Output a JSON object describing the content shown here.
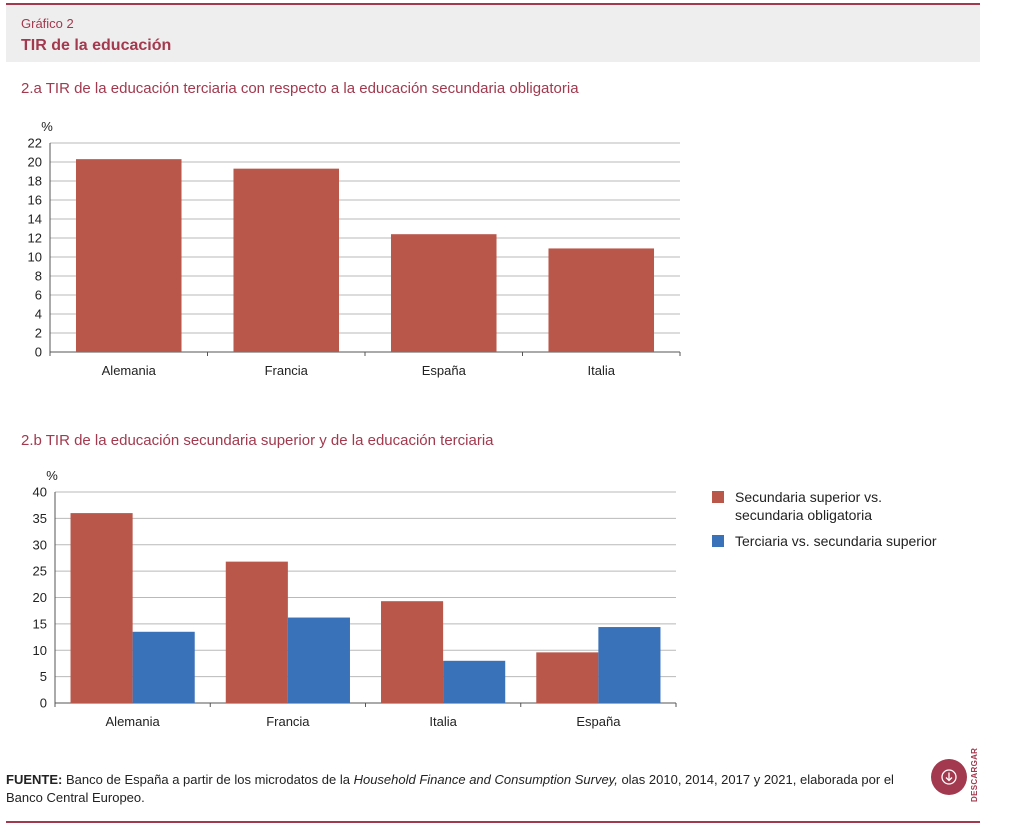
{
  "header": {
    "kicker": "Gráfico 2",
    "title": "TIR de la educación"
  },
  "colors": {
    "accent": "#a2394e",
    "series_red": "#b9574a",
    "series_blue": "#3a72b9",
    "grid": "#b9b9b9",
    "axis": "#555555"
  },
  "chart_data": [
    {
      "type": "bar",
      "title": "2.a TIR de la educación terciaria con respecto a la educación secundaria obligatoria",
      "ylabel": "%",
      "categories": [
        "Alemania",
        "Francia",
        "España",
        "Italia"
      ],
      "values": [
        20.3,
        19.3,
        12.4,
        10.9
      ],
      "ylim": [
        0,
        22
      ],
      "ytick_step": 2,
      "grid": true
    },
    {
      "type": "bar",
      "title": "2.b TIR de la educación secundaria superior y de la educación terciaria",
      "ylabel": "%",
      "categories": [
        "Alemania",
        "Francia",
        "Italia",
        "España"
      ],
      "series": [
        {
          "name": "Secundaria superior vs. secundaria obligatoria",
          "values": [
            36.0,
            26.8,
            19.3,
            9.6
          ]
        },
        {
          "name": "Terciaria vs. secundaria superior",
          "values": [
            13.5,
            16.2,
            8.0,
            14.4
          ]
        }
      ],
      "ylim": [
        0,
        40
      ],
      "ytick_step": 5,
      "grid": true,
      "legend": "right"
    }
  ],
  "legend": {
    "items": [
      {
        "line1": "Secundaria superior vs.",
        "line2": "secundaria obligatoria",
        "color": "#b9574a"
      },
      {
        "line1": "Terciaria vs. secundaria superior",
        "line2": "",
        "color": "#3a72b9"
      }
    ]
  },
  "source": {
    "label": "FUENTE:",
    "text_before": " Banco de España a partir de los microdatos de la ",
    "italic": "Household Finance and Consumption Survey,",
    "text_after": " olas 2010, 2014, 2017 y 2021, elaborada por el Banco Central Europeo."
  },
  "download": {
    "label": "DESCARGAR",
    "icon": "download-arrow-icon"
  }
}
